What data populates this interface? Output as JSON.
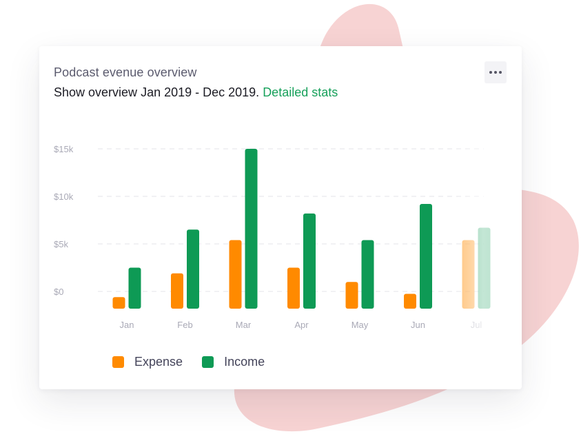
{
  "card": {
    "title": "Podcast evenue overview",
    "subtitle_prefix": "Show overview ",
    "subtitle_range": "Jan 2019 - Dec 2019.",
    "subtitle_link": "Detailed stats",
    "more_icon": "more-horizontal-icon"
  },
  "colors": {
    "expense": "#ff8a00",
    "income": "#0e9a55",
    "link": "#16a05a",
    "grid": "#e3e3e8",
    "background_blob": "#f7d3d3"
  },
  "chart_data": {
    "type": "bar",
    "title": "Podcast evenue overview",
    "subtitle": "Show overview Jan 2019 - Dec 2019.",
    "categories": [
      "Jan",
      "Feb",
      "Mar",
      "Apr",
      "May",
      "Jun",
      "Jul"
    ],
    "series": [
      {
        "name": "Expense",
        "values": [
          -600,
          1900,
          5400,
          2500,
          1000,
          -250,
          5400
        ]
      },
      {
        "name": "Income",
        "values": [
          2500,
          6500,
          15000,
          8200,
          5400,
          9200,
          6700
        ]
      }
    ],
    "ylim": [
      0,
      15000
    ],
    "yticks": [
      0,
      5000,
      10000,
      15000
    ],
    "ytick_labels": [
      "$0",
      "$5k",
      "$10k",
      "$15k"
    ],
    "xlabel": "",
    "ylabel": "",
    "grid": true,
    "grid_style": "dashed",
    "legend": {
      "placement": "bottom-left",
      "entries": [
        "Expense",
        "Income"
      ]
    },
    "partially_visible_categories": [
      "Jul"
    ]
  }
}
